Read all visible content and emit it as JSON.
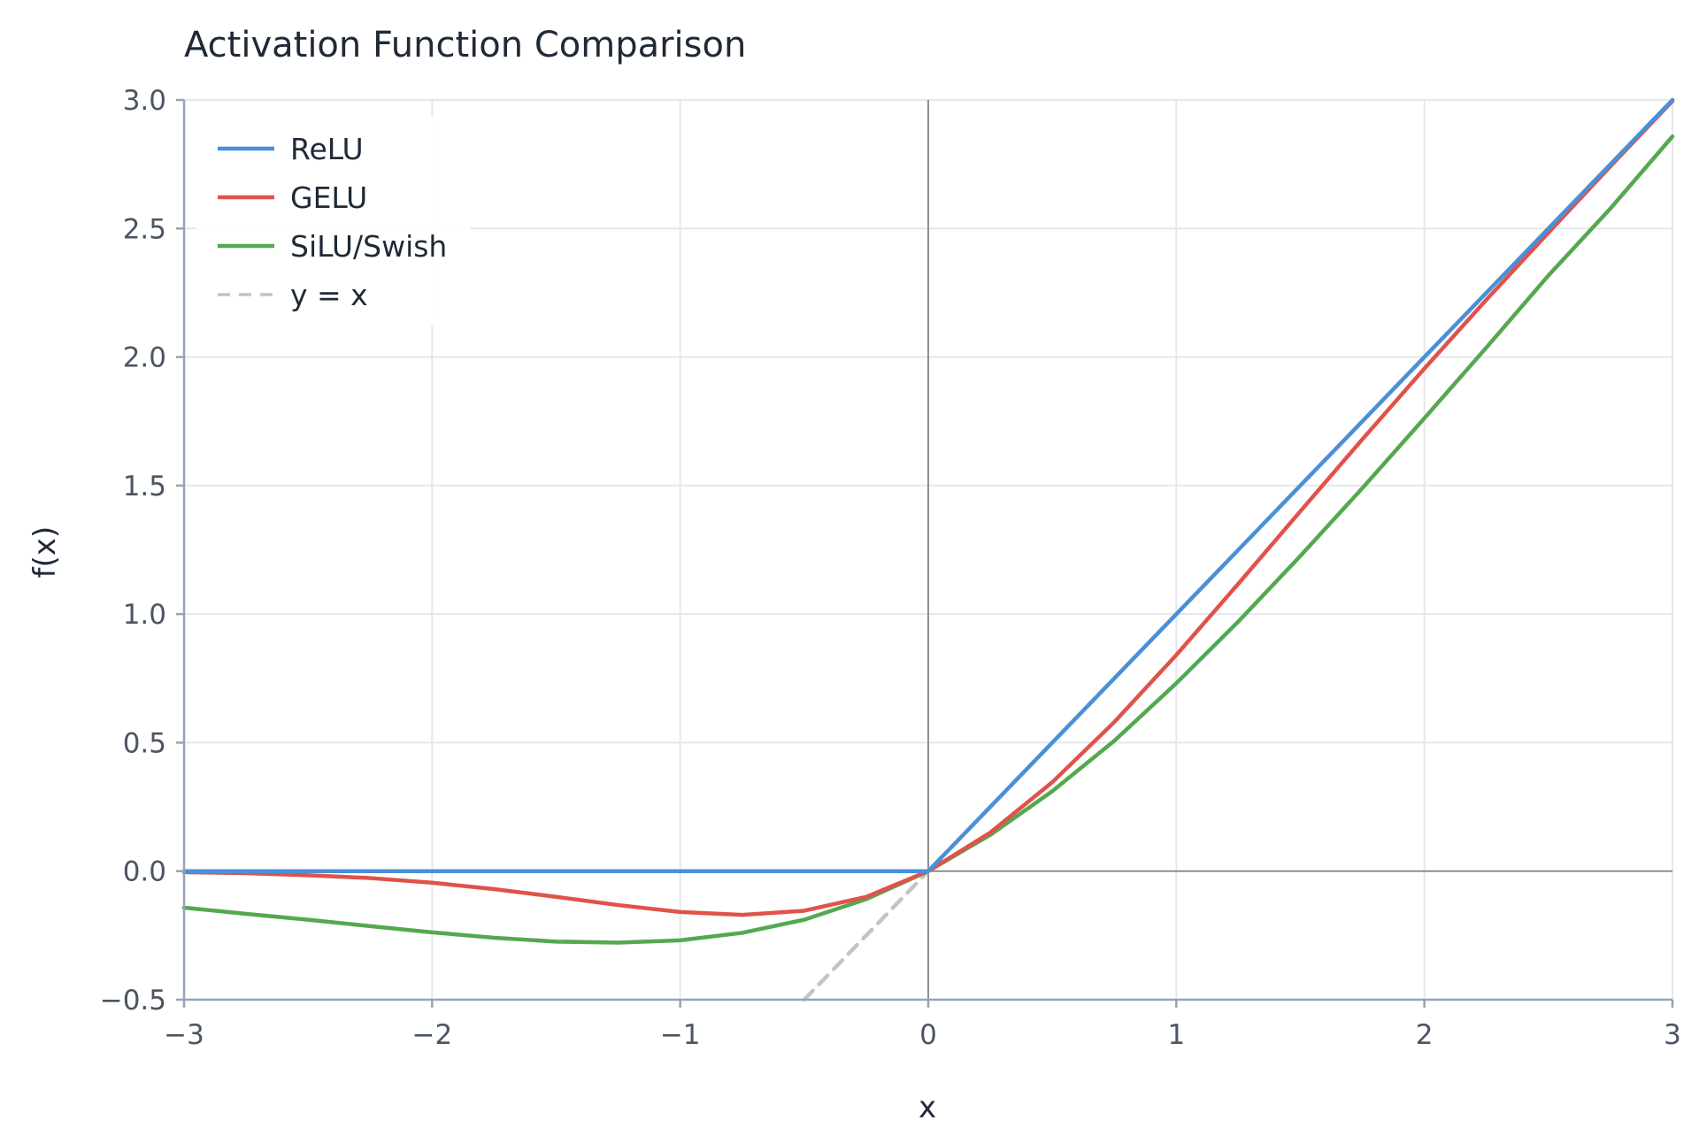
{
  "chart_data": {
    "type": "line",
    "title": "Activation Function Comparison",
    "xlabel": "x",
    "ylabel": "f(x)",
    "xlim": [
      -3,
      3
    ],
    "ylim": [
      -0.5,
      3.0
    ],
    "x_ticks": [
      -3,
      -2,
      -1,
      0,
      1,
      2,
      3
    ],
    "x_tick_labels": [
      "−3",
      "−2",
      "−1",
      "0",
      "1",
      "2",
      "3"
    ],
    "y_ticks": [
      -0.5,
      0.0,
      0.5,
      1.0,
      1.5,
      2.0,
      2.5,
      3.0
    ],
    "y_tick_labels": [
      "−0.5",
      "0.0",
      "0.5",
      "1.0",
      "1.5",
      "2.0",
      "2.5",
      "3.0"
    ],
    "grid": true,
    "legend_position": "top-left",
    "x": [
      -3.0,
      -2.75,
      -2.5,
      -2.25,
      -2.0,
      -1.75,
      -1.5,
      -1.25,
      -1.0,
      -0.75,
      -0.5,
      -0.25,
      0.0,
      0.25,
      0.5,
      0.75,
      1.0,
      1.25,
      1.5,
      1.75,
      2.0,
      2.25,
      2.5,
      2.75,
      3.0
    ],
    "series": [
      {
        "name": "ReLU",
        "color": "#4a90d9",
        "dash": "solid",
        "values": [
          0,
          0,
          0,
          0,
          0,
          0,
          0,
          0,
          0,
          0,
          0,
          0,
          0,
          0.25,
          0.5,
          0.75,
          1.0,
          1.25,
          1.5,
          1.75,
          2.0,
          2.25,
          2.5,
          2.75,
          3.0
        ]
      },
      {
        "name": "GELU",
        "color": "#e0524a",
        "dash": "solid",
        "values": [
          -0.004,
          -0.008,
          -0.016,
          -0.027,
          -0.045,
          -0.07,
          -0.1,
          -0.132,
          -0.159,
          -0.17,
          -0.154,
          -0.1,
          0.0,
          0.15,
          0.346,
          0.58,
          0.841,
          1.118,
          1.4,
          1.68,
          1.955,
          2.223,
          2.484,
          2.742,
          2.996
        ]
      },
      {
        "name": "SiLU/Swish",
        "color": "#55a84f",
        "dash": "solid",
        "values": [
          -0.142,
          -0.166,
          -0.189,
          -0.214,
          -0.238,
          -0.259,
          -0.274,
          -0.278,
          -0.269,
          -0.24,
          -0.189,
          -0.109,
          0.0,
          0.141,
          0.311,
          0.507,
          0.731,
          0.971,
          1.226,
          1.49,
          1.762,
          2.037,
          2.317,
          2.578,
          2.858
        ]
      },
      {
        "name": "y = x",
        "color": "#c4c4c4",
        "dash": "dashed",
        "values": [
          null,
          null,
          null,
          null,
          null,
          null,
          null,
          null,
          null,
          null,
          -0.5,
          -0.25,
          0.0,
          0.25,
          0.5,
          0.75,
          1.0,
          1.25,
          1.5,
          1.75,
          2.0,
          2.25,
          2.5,
          2.75,
          3.0
        ]
      }
    ]
  }
}
